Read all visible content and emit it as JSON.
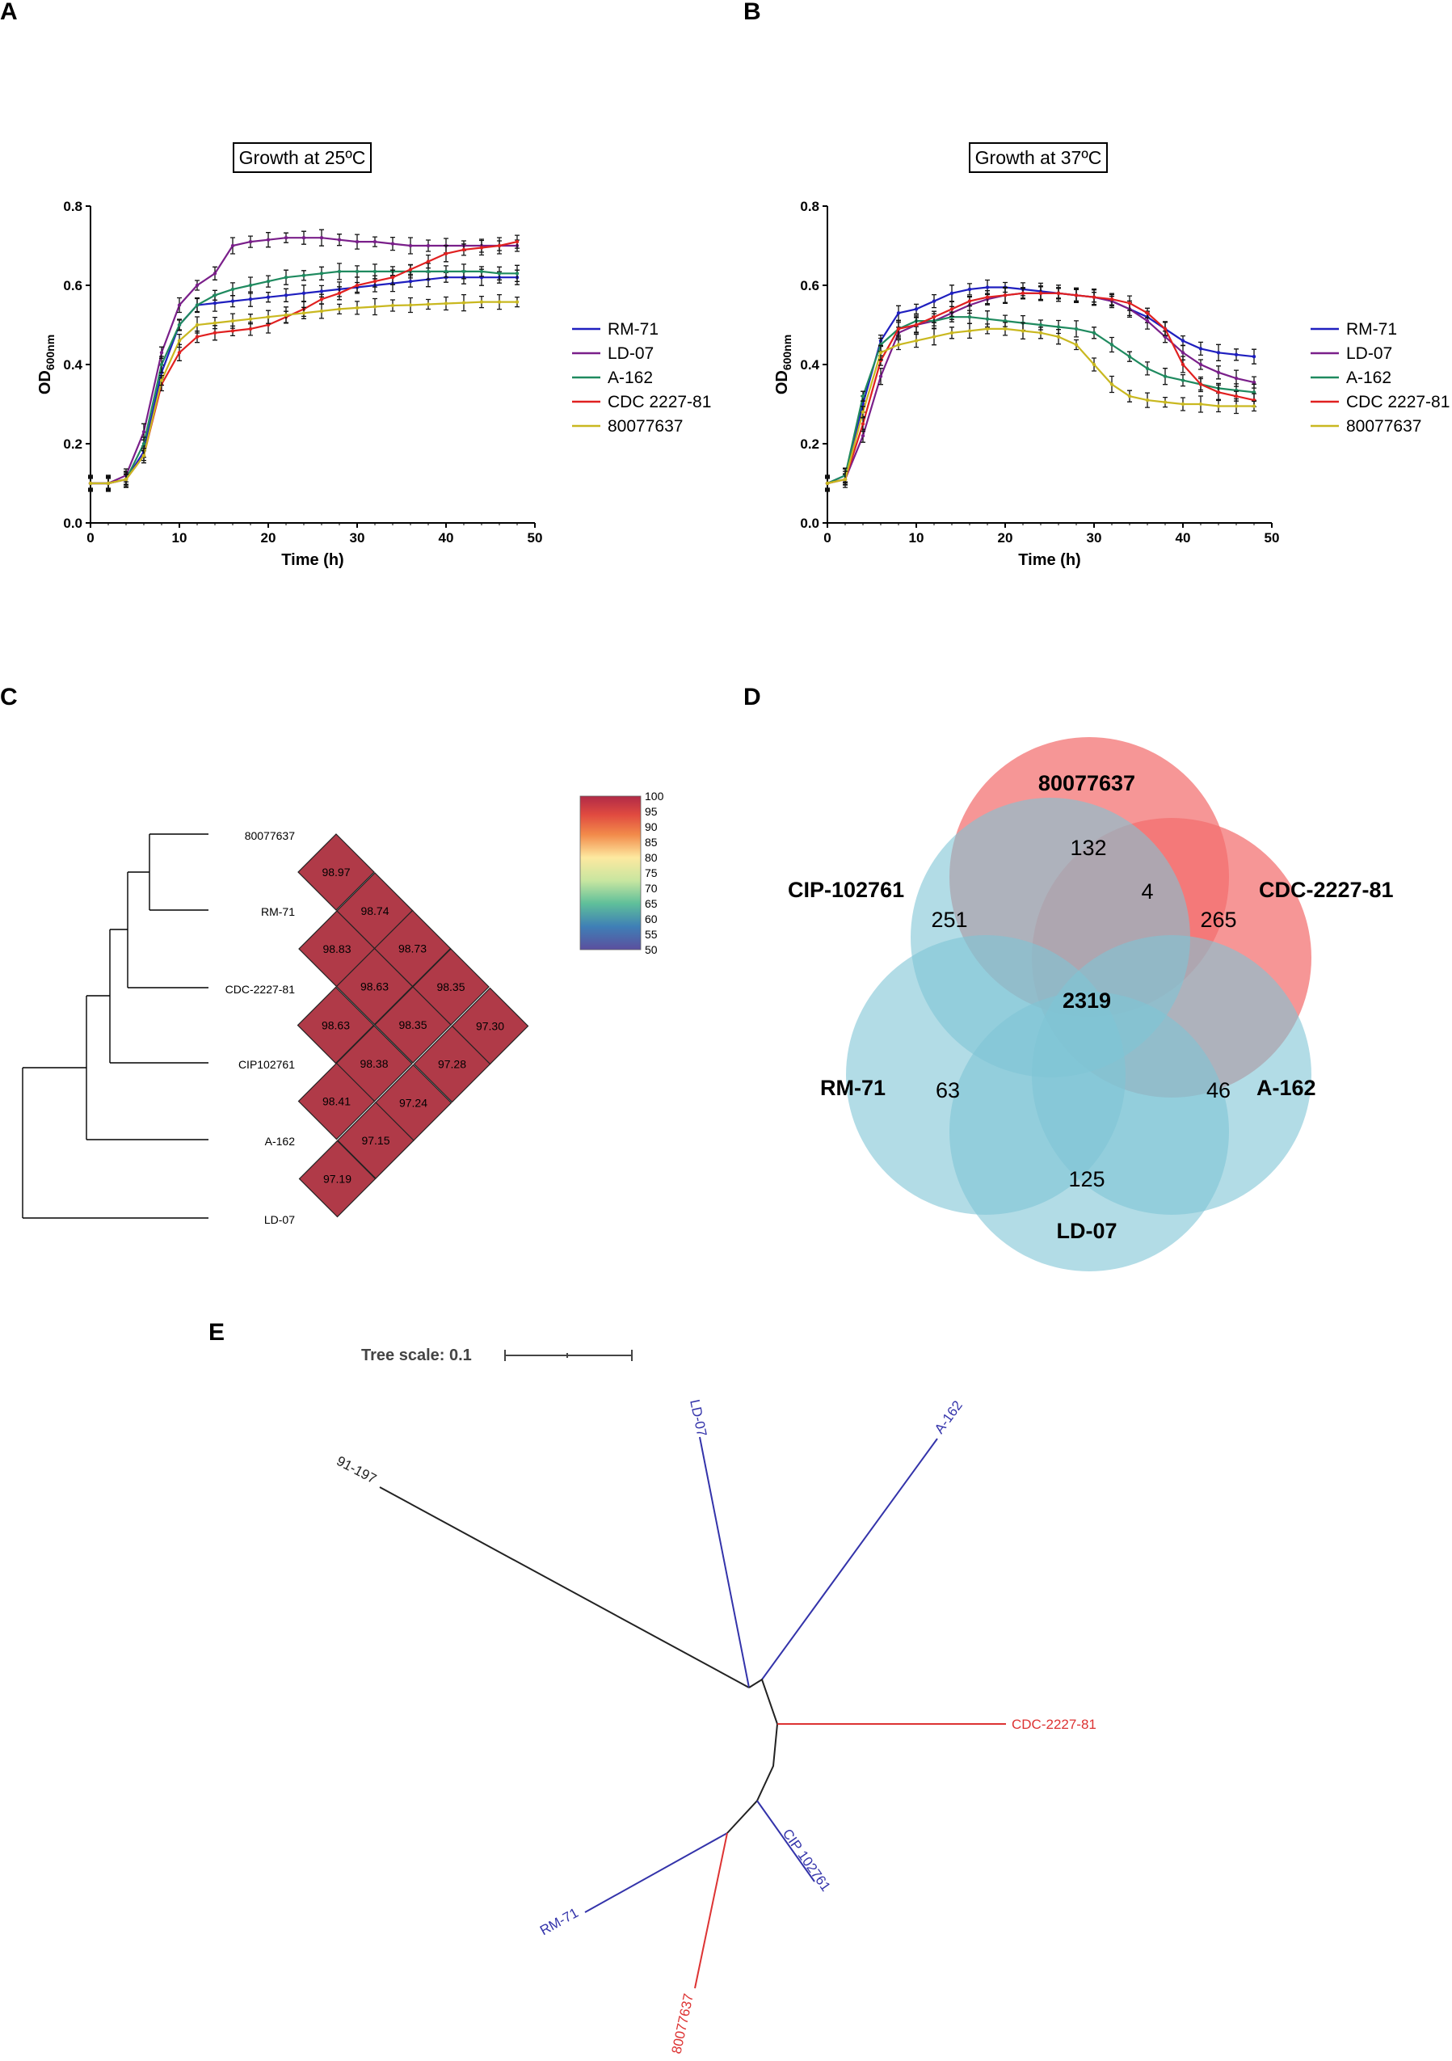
{
  "panels": {
    "A": "A",
    "B": "B",
    "C": "C",
    "D": "D",
    "E": "E"
  },
  "colors": {
    "RM-71": "#1f1fbf",
    "LD-07": "#7a1f8a",
    "A-162": "#1f8a5f",
    "CDC 2227-81": "#e02020",
    "80077637": "#c9b820",
    "heat_cell": "#b03a48",
    "venn_red": "#f06060",
    "venn_blue": "#7fc4d6",
    "tree_blue": "#3333aa",
    "tree_red": "#dd3333"
  },
  "chart_data": [
    {
      "type": "line",
      "panel": "A",
      "title": "Growth at 25ºC",
      "xlabel": "Time (h)",
      "ylabel": "OD600nm",
      "xlim": [
        0,
        50
      ],
      "ylim": [
        0,
        0.8
      ],
      "xticks": [
        0,
        10,
        20,
        30,
        40,
        50
      ],
      "yticks": [
        0.0,
        0.2,
        0.4,
        0.6,
        0.8
      ],
      "legend": [
        "RM-71",
        "LD-07",
        "A-162",
        "CDC 2227-81",
        "80077637"
      ],
      "x": [
        0,
        2,
        4,
        6,
        8,
        10,
        12,
        14,
        16,
        18,
        20,
        22,
        24,
        26,
        28,
        30,
        32,
        34,
        36,
        38,
        40,
        42,
        44,
        46,
        48
      ],
      "series": [
        {
          "name": "RM-71",
          "values": [
            0.1,
            0.1,
            0.11,
            0.18,
            0.38,
            0.5,
            0.55,
            0.555,
            0.56,
            0.565,
            0.57,
            0.575,
            0.58,
            0.585,
            0.59,
            0.595,
            0.6,
            0.605,
            0.61,
            0.615,
            0.62,
            0.62,
            0.62,
            0.62,
            0.62
          ]
        },
        {
          "name": "LD-07",
          "values": [
            0.1,
            0.1,
            0.12,
            0.23,
            0.43,
            0.55,
            0.6,
            0.63,
            0.7,
            0.71,
            0.715,
            0.72,
            0.72,
            0.72,
            0.715,
            0.71,
            0.71,
            0.705,
            0.7,
            0.7,
            0.7,
            0.7,
            0.7,
            0.7,
            0.7
          ]
        },
        {
          "name": "A-162",
          "values": [
            0.1,
            0.1,
            0.11,
            0.2,
            0.4,
            0.5,
            0.55,
            0.575,
            0.59,
            0.6,
            0.61,
            0.62,
            0.625,
            0.63,
            0.635,
            0.635,
            0.635,
            0.635,
            0.635,
            0.635,
            0.635,
            0.635,
            0.635,
            0.63,
            0.63
          ]
        },
        {
          "name": "CDC 2227-81",
          "values": [
            0.1,
            0.1,
            0.11,
            0.17,
            0.35,
            0.43,
            0.47,
            0.48,
            0.485,
            0.49,
            0.5,
            0.52,
            0.54,
            0.565,
            0.58,
            0.6,
            0.61,
            0.62,
            0.64,
            0.66,
            0.68,
            0.69,
            0.695,
            0.7,
            0.71
          ]
        },
        {
          "name": "80077637",
          "values": [
            0.1,
            0.1,
            0.11,
            0.17,
            0.36,
            0.46,
            0.5,
            0.505,
            0.51,
            0.515,
            0.52,
            0.525,
            0.53,
            0.535,
            0.54,
            0.543,
            0.546,
            0.549,
            0.55,
            0.552,
            0.554,
            0.556,
            0.558,
            0.558,
            0.558
          ]
        }
      ]
    },
    {
      "type": "line",
      "panel": "B",
      "title": "Growth at 37ºC",
      "xlabel": "Time (h)",
      "ylabel": "OD600nm",
      "xlim": [
        0,
        50
      ],
      "ylim": [
        0,
        0.8
      ],
      "xticks": [
        0,
        10,
        20,
        30,
        40,
        50
      ],
      "yticks": [
        0.0,
        0.2,
        0.4,
        0.6,
        0.8
      ],
      "legend": [
        "RM-71",
        "LD-07",
        "A-162",
        "CDC 2227-81",
        "80077637"
      ],
      "x": [
        0,
        2,
        4,
        6,
        8,
        10,
        12,
        14,
        16,
        18,
        20,
        22,
        24,
        26,
        28,
        30,
        32,
        34,
        36,
        38,
        40,
        42,
        44,
        46,
        48
      ],
      "series": [
        {
          "name": "RM-71",
          "values": [
            0.1,
            0.12,
            0.3,
            0.46,
            0.53,
            0.54,
            0.56,
            0.58,
            0.59,
            0.595,
            0.595,
            0.59,
            0.585,
            0.58,
            0.575,
            0.57,
            0.56,
            0.54,
            0.52,
            0.49,
            0.46,
            0.44,
            0.43,
            0.425,
            0.42
          ]
        },
        {
          "name": "LD-07",
          "values": [
            0.1,
            0.11,
            0.22,
            0.37,
            0.48,
            0.5,
            0.51,
            0.53,
            0.55,
            0.565,
            0.575,
            0.58,
            0.58,
            0.58,
            0.575,
            0.57,
            0.56,
            0.54,
            0.51,
            0.47,
            0.43,
            0.4,
            0.38,
            0.365,
            0.355
          ]
        },
        {
          "name": "A-162",
          "values": [
            0.1,
            0.12,
            0.32,
            0.45,
            0.49,
            0.51,
            0.51,
            0.52,
            0.52,
            0.515,
            0.51,
            0.505,
            0.5,
            0.495,
            0.49,
            0.48,
            0.45,
            0.42,
            0.39,
            0.37,
            0.36,
            0.35,
            0.34,
            0.335,
            0.33
          ]
        },
        {
          "name": "CDC 2227-81",
          "values": [
            0.1,
            0.11,
            0.25,
            0.41,
            0.49,
            0.5,
            0.52,
            0.54,
            0.56,
            0.57,
            0.575,
            0.58,
            0.58,
            0.58,
            0.575,
            0.57,
            0.565,
            0.555,
            0.53,
            0.49,
            0.4,
            0.35,
            0.33,
            0.32,
            0.31
          ]
        },
        {
          "name": "80077637",
          "values": [
            0.1,
            0.11,
            0.28,
            0.43,
            0.45,
            0.46,
            0.47,
            0.48,
            0.485,
            0.49,
            0.49,
            0.485,
            0.48,
            0.47,
            0.45,
            0.4,
            0.35,
            0.32,
            0.31,
            0.305,
            0.3,
            0.3,
            0.295,
            0.295,
            0.295
          ]
        }
      ]
    },
    {
      "type": "heatmap",
      "panel": "C",
      "strains": [
        "80077637",
        "RM-71",
        "CDC-2227-81",
        "CIP102761",
        "A-162",
        "LD-07"
      ],
      "cells": [
        {
          "i": 0,
          "j": 1,
          "value": "98.97"
        },
        {
          "i": 0,
          "j": 2,
          "value": "98.74"
        },
        {
          "i": 0,
          "j": 3,
          "value": "98.73"
        },
        {
          "i": 0,
          "j": 4,
          "value": "98.35"
        },
        {
          "i": 0,
          "j": 5,
          "value": "97.30"
        },
        {
          "i": 1,
          "j": 2,
          "value": "98.83"
        },
        {
          "i": 1,
          "j": 3,
          "value": "98.63"
        },
        {
          "i": 1,
          "j": 4,
          "value": "98.35"
        },
        {
          "i": 1,
          "j": 5,
          "value": "97.28"
        },
        {
          "i": 2,
          "j": 3,
          "value": "98.63"
        },
        {
          "i": 2,
          "j": 4,
          "value": "98.38"
        },
        {
          "i": 2,
          "j": 5,
          "value": "97.24"
        },
        {
          "i": 3,
          "j": 4,
          "value": "98.41"
        },
        {
          "i": 3,
          "j": 5,
          "value": "97.15"
        },
        {
          "i": 4,
          "j": 5,
          "value": "97.19"
        }
      ],
      "colorbar": {
        "min": 50,
        "max": 100,
        "ticks": [
          "100",
          "95",
          "90",
          "85",
          "80",
          "75",
          "70",
          "65",
          "60",
          "55",
          "50"
        ]
      }
    }
  ],
  "venn": {
    "sets": [
      {
        "name": "80077637",
        "color": "red"
      },
      {
        "name": "CDC-2227-81",
        "color": "red"
      },
      {
        "name": "A-162",
        "color": "blue"
      },
      {
        "name": "LD-07",
        "color": "blue"
      },
      {
        "name": "RM-71",
        "color": "blue"
      },
      {
        "name": "CIP-102761",
        "color": "blue"
      }
    ],
    "counts": {
      "80077637": "132",
      "80077637_CDC-2227-81": "4",
      "CDC-2227-81": "265",
      "CIP-102761": "251",
      "core": "2319",
      "RM-71": "63",
      "A-162": "46",
      "LD-07": "125"
    }
  },
  "phylo_tree": {
    "scale_label": "Tree scale: 0.1",
    "leaves": [
      {
        "name": "91-197",
        "group": "black"
      },
      {
        "name": "LD-07",
        "group": "blue"
      },
      {
        "name": "A-162",
        "group": "blue"
      },
      {
        "name": "CDC-2227-81",
        "group": "red"
      },
      {
        "name": "CIP 102761",
        "group": "blue"
      },
      {
        "name": "RM-71",
        "group": "blue"
      },
      {
        "name": "80077637",
        "group": "red"
      }
    ]
  }
}
